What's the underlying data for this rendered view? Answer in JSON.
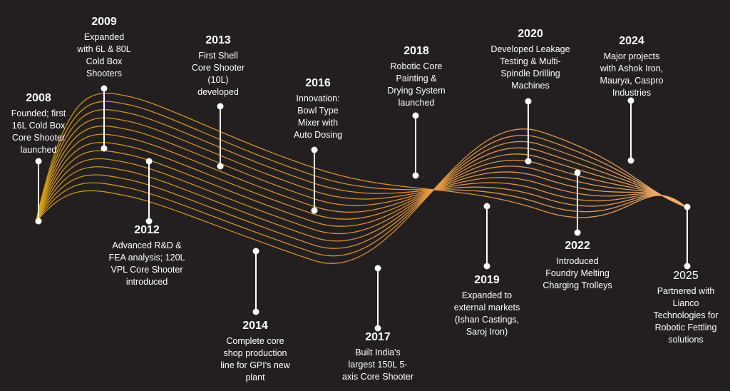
{
  "timeline": {
    "wave_colors": {
      "start": "#d9a20d",
      "mid": "#eb9a3a",
      "end": "#f5b070"
    },
    "milestones": [
      {
        "year": "2008",
        "description": [
          "Founded; first",
          "16L Cold Box",
          "Core Shooter",
          "launched"
        ]
      },
      {
        "year": "2009",
        "description": [
          "Expanded",
          "with 6L & 80L",
          "Cold Box",
          "Shooters"
        ]
      },
      {
        "year": "2012",
        "description": [
          "Advanced R&D &",
          "FEA analysis; 120L",
          "VPL Core Shooter",
          "introduced"
        ]
      },
      {
        "year": "2013",
        "description": [
          "First Shell",
          "Core Shooter",
          "(10L)",
          "developed"
        ]
      },
      {
        "year": "2014",
        "description": [
          "Complete core",
          "shop production",
          "line for GPI's new",
          "plant"
        ]
      },
      {
        "year": "2016",
        "description": [
          "Innovation:",
          "Bowl Type",
          "Mixer with",
          "Auto Dosing"
        ]
      },
      {
        "year": "2017",
        "description": [
          "Built India's",
          "largest 150L 5-",
          "axis Core Shooter"
        ]
      },
      {
        "year": "2018",
        "description": [
          "Robotic Core",
          "Painting &",
          "Drying System",
          "launched"
        ]
      },
      {
        "year": "2019",
        "description": [
          "Expanded to",
          "external markets",
          "(Ishan Castings,",
          "Saroj Iron)"
        ]
      },
      {
        "year": "2020",
        "description": [
          "Developed Leakage",
          "Testing & Multi-",
          "Spindle Drilling",
          "Machines"
        ]
      },
      {
        "year": "2022",
        "description": [
          "Introduced",
          "Foundry Melting",
          "Charging Trolleys"
        ]
      },
      {
        "year": "2024",
        "description": [
          "Major projects",
          "with Ashok Iron,",
          "Maurya, Caspro",
          "Industries"
        ]
      },
      {
        "year": "2025",
        "description": [
          "Partnered with",
          "Lianco",
          "Technologies for",
          "Robotic Fettling",
          "solutions"
        ]
      }
    ]
  }
}
